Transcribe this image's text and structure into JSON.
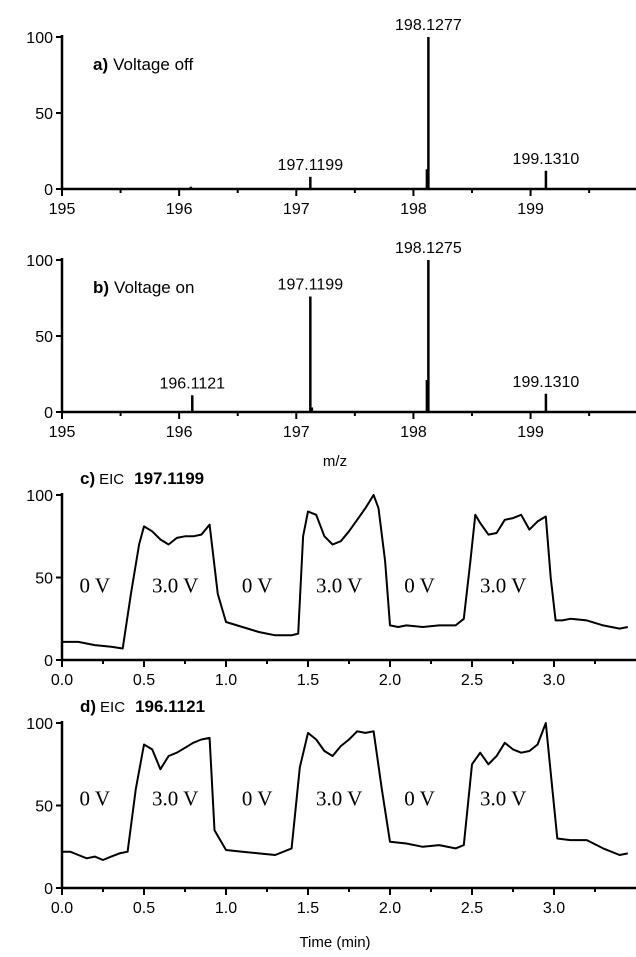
{
  "chart_data": [
    {
      "type": "bar",
      "panel": "a",
      "title_letter": "a)",
      "title_text": "Voltage off",
      "xlim": [
        195,
        199.9
      ],
      "ylim": [
        0,
        100
      ],
      "xticks": [
        "195",
        "196",
        "197",
        "198",
        "199"
      ],
      "yticks": [
        "0",
        "50",
        "100"
      ],
      "xlabel": "",
      "peaks": [
        {
          "x": 196.1,
          "y": 1.5,
          "label": ""
        },
        {
          "x": 197.1199,
          "y": 8,
          "label": "197.1199"
        },
        {
          "x": 198.115,
          "y": 13,
          "label": ""
        },
        {
          "x": 198.1277,
          "y": 100,
          "label": "198.1277"
        },
        {
          "x": 199.131,
          "y": 12,
          "label": "199.1310"
        }
      ]
    },
    {
      "type": "bar",
      "panel": "b",
      "title_letter": "b)",
      "title_text": "Voltage on",
      "xlim": [
        195,
        199.9
      ],
      "ylim": [
        0,
        100
      ],
      "xticks": [
        "195",
        "196",
        "197",
        "198",
        "199"
      ],
      "yticks": [
        "0",
        "50",
        "100"
      ],
      "xlabel": "m/z",
      "peaks": [
        {
          "x": 196.1121,
          "y": 11,
          "label": "196.1121"
        },
        {
          "x": 197.1199,
          "y": 76,
          "label": "197.1199"
        },
        {
          "x": 197.133,
          "y": 3,
          "label": ""
        },
        {
          "x": 198.115,
          "y": 21,
          "label": ""
        },
        {
          "x": 198.1275,
          "y": 100,
          "label": "198.1275"
        },
        {
          "x": 199.131,
          "y": 12,
          "label": "199.1310"
        }
      ]
    },
    {
      "type": "line",
      "panel": "c",
      "title_letter": "c)",
      "title_prefix": "EIC",
      "title_mass": "197.1199",
      "xlim": [
        0,
        3.5
      ],
      "ylim": [
        0,
        100
      ],
      "xticks": [
        "0.0",
        "0.5",
        "1.0",
        "1.5",
        "2.0",
        "2.5",
        "3.0"
      ],
      "yticks": [
        "0",
        "50",
        "100"
      ],
      "xlabel": "",
      "regions": [
        {
          "x": 0.2,
          "y": 41,
          "label": "0 V"
        },
        {
          "x": 0.69,
          "y": 41,
          "label": "3.0 V"
        },
        {
          "x": 1.19,
          "y": 41,
          "label": "0 V"
        },
        {
          "x": 1.69,
          "y": 41,
          "label": "3.0 V"
        },
        {
          "x": 2.18,
          "y": 41,
          "label": "0 V"
        },
        {
          "x": 2.69,
          "y": 41,
          "label": "3.0 V"
        }
      ],
      "x": [
        0.0,
        0.1,
        0.2,
        0.3,
        0.37,
        0.42,
        0.47,
        0.5,
        0.55,
        0.6,
        0.65,
        0.7,
        0.75,
        0.8,
        0.85,
        0.9,
        0.95,
        1.0,
        1.1,
        1.2,
        1.3,
        1.4,
        1.44,
        1.47,
        1.5,
        1.55,
        1.6,
        1.65,
        1.7,
        1.75,
        1.8,
        1.85,
        1.9,
        1.93,
        1.97,
        2.0,
        2.05,
        2.1,
        2.2,
        2.3,
        2.4,
        2.45,
        2.49,
        2.52,
        2.55,
        2.6,
        2.65,
        2.7,
        2.75,
        2.8,
        2.85,
        2.9,
        2.95,
        2.98,
        3.01,
        3.05,
        3.1,
        3.2,
        3.3,
        3.4,
        3.45
      ],
      "y": [
        11,
        11,
        9,
        8,
        7,
        40,
        70,
        81,
        78,
        73,
        70,
        74,
        75,
        75,
        76,
        82,
        40,
        23,
        20,
        17,
        15,
        15,
        16,
        75,
        90,
        88,
        75,
        70,
        72,
        78,
        85,
        92,
        100,
        92,
        60,
        21,
        20,
        21,
        20,
        21,
        21,
        25,
        60,
        88,
        83,
        76,
        77,
        85,
        86,
        88,
        79,
        84,
        87,
        50,
        24,
        24,
        25,
        24,
        21,
        19,
        20
      ]
    },
    {
      "type": "line",
      "panel": "d",
      "title_letter": "d)",
      "title_prefix": "EIC",
      "title_mass": "196.1121",
      "xlim": [
        0,
        3.5
      ],
      "ylim": [
        0,
        100
      ],
      "xticks": [
        "0.0",
        "0.5",
        "1.0",
        "1.5",
        "2.0",
        "2.5",
        "3.0"
      ],
      "yticks": [
        "0",
        "50",
        "100"
      ],
      "xlabel": "Time (min)",
      "regions": [
        {
          "x": 0.2,
          "y": 50,
          "label": "0 V"
        },
        {
          "x": 0.69,
          "y": 50,
          "label": "3.0 V"
        },
        {
          "x": 1.19,
          "y": 50,
          "label": "0 V"
        },
        {
          "x": 1.69,
          "y": 50,
          "label": "3.0 V"
        },
        {
          "x": 2.18,
          "y": 50,
          "label": "0 V"
        },
        {
          "x": 2.69,
          "y": 50,
          "label": "3.0 V"
        }
      ],
      "x": [
        0.0,
        0.05,
        0.1,
        0.15,
        0.2,
        0.25,
        0.3,
        0.35,
        0.4,
        0.45,
        0.5,
        0.55,
        0.6,
        0.65,
        0.7,
        0.75,
        0.8,
        0.85,
        0.9,
        0.93,
        1.0,
        1.1,
        1.2,
        1.3,
        1.4,
        1.45,
        1.5,
        1.55,
        1.6,
        1.65,
        1.7,
        1.75,
        1.8,
        1.85,
        1.9,
        1.95,
        2.0,
        2.1,
        2.2,
        2.3,
        2.4,
        2.45,
        2.5,
        2.55,
        2.6,
        2.65,
        2.7,
        2.75,
        2.8,
        2.85,
        2.9,
        2.95,
        2.98,
        3.02,
        3.1,
        3.2,
        3.3,
        3.4,
        3.45
      ],
      "y": [
        22,
        22,
        20,
        18,
        19,
        17,
        19,
        21,
        22,
        60,
        87,
        84,
        72,
        80,
        82,
        85,
        88,
        90,
        91,
        35,
        23,
        22,
        21,
        20,
        24,
        73,
        94,
        90,
        83,
        80,
        86,
        90,
        95,
        94,
        95,
        60,
        28,
        27,
        25,
        26,
        24,
        26,
        75,
        82,
        75,
        80,
        88,
        84,
        82,
        83,
        87,
        100,
        70,
        30,
        29,
        29,
        24,
        20,
        21
      ]
    }
  ]
}
